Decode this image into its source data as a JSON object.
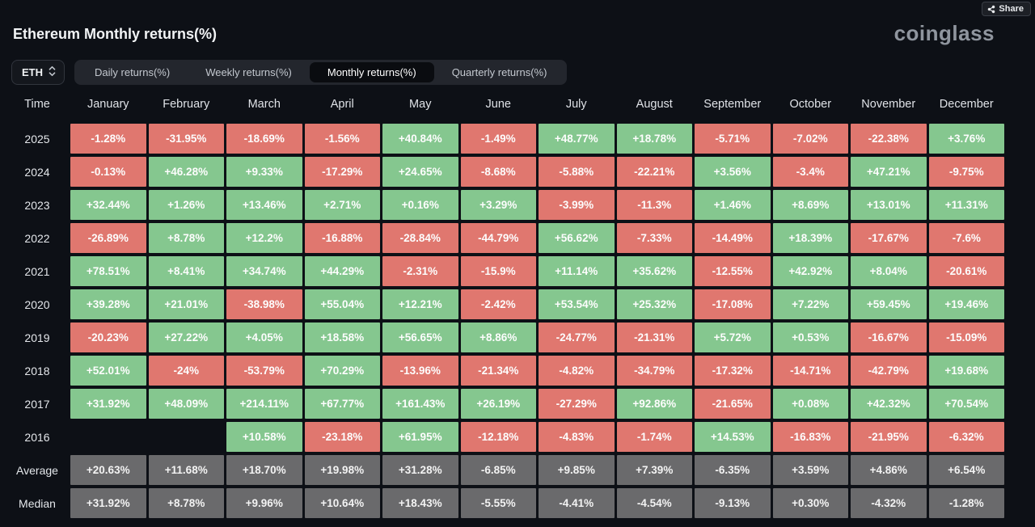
{
  "page": {
    "title": "Ethereum Monthly returns(%)",
    "brand": "coinglass",
    "share_label": "Share"
  },
  "controls": {
    "symbol_select": {
      "value": "ETH"
    },
    "tabs": [
      {
        "label": "Daily returns(%)",
        "active": false
      },
      {
        "label": "Weekly returns(%)",
        "active": false
      },
      {
        "label": "Monthly returns(%)",
        "active": true
      },
      {
        "label": "Quarterly returns(%)",
        "active": false
      }
    ]
  },
  "table": {
    "columns": [
      "Time",
      "January",
      "February",
      "March",
      "April",
      "May",
      "June",
      "July",
      "August",
      "September",
      "October",
      "November",
      "December"
    ],
    "rows": [
      {
        "label": "2025",
        "type": "year",
        "values": [
          "-1.28%",
          "-31.95%",
          "-18.69%",
          "-1.56%",
          "+40.84%",
          "-1.49%",
          "+48.77%",
          "+18.78%",
          "-5.71%",
          "-7.02%",
          "-22.38%",
          "+3.76%"
        ]
      },
      {
        "label": "2024",
        "type": "year",
        "values": [
          "-0.13%",
          "+46.28%",
          "+9.33%",
          "-17.29%",
          "+24.65%",
          "-8.68%",
          "-5.88%",
          "-22.21%",
          "+3.56%",
          "-3.4%",
          "+47.21%",
          "-9.75%"
        ]
      },
      {
        "label": "2023",
        "type": "year",
        "values": [
          "+32.44%",
          "+1.26%",
          "+13.46%",
          "+2.71%",
          "+0.16%",
          "+3.29%",
          "-3.99%",
          "-11.3%",
          "+1.46%",
          "+8.69%",
          "+13.01%",
          "+11.31%"
        ]
      },
      {
        "label": "2022",
        "type": "year",
        "values": [
          "-26.89%",
          "+8.78%",
          "+12.2%",
          "-16.88%",
          "-28.84%",
          "-44.79%",
          "+56.62%",
          "-7.33%",
          "-14.49%",
          "+18.39%",
          "-17.67%",
          "-7.6%"
        ]
      },
      {
        "label": "2021",
        "type": "year",
        "values": [
          "+78.51%",
          "+8.41%",
          "+34.74%",
          "+44.29%",
          "-2.31%",
          "-15.9%",
          "+11.14%",
          "+35.62%",
          "-12.55%",
          "+42.92%",
          "+8.04%",
          "-20.61%"
        ]
      },
      {
        "label": "2020",
        "type": "year",
        "values": [
          "+39.28%",
          "+21.01%",
          "-38.98%",
          "+55.04%",
          "+12.21%",
          "-2.42%",
          "+53.54%",
          "+25.32%",
          "-17.08%",
          "+7.22%",
          "+59.45%",
          "+19.46%"
        ]
      },
      {
        "label": "2019",
        "type": "year",
        "values": [
          "-20.23%",
          "+27.22%",
          "+4.05%",
          "+18.58%",
          "+56.65%",
          "+8.86%",
          "-24.77%",
          "-21.31%",
          "+5.72%",
          "+0.53%",
          "-16.67%",
          "-15.09%"
        ]
      },
      {
        "label": "2018",
        "type": "year",
        "values": [
          "+52.01%",
          "-24%",
          "-53.79%",
          "+70.29%",
          "-13.96%",
          "-21.34%",
          "-4.82%",
          "-34.79%",
          "-17.32%",
          "-14.71%",
          "-42.79%",
          "+19.68%"
        ]
      },
      {
        "label": "2017",
        "type": "year",
        "values": [
          "+31.92%",
          "+48.09%",
          "+214.11%",
          "+67.77%",
          "+161.43%",
          "+26.19%",
          "-27.29%",
          "+92.86%",
          "-21.65%",
          "+0.08%",
          "+42.32%",
          "+70.54%"
        ]
      },
      {
        "label": "2016",
        "type": "year",
        "values": [
          "",
          "",
          "+10.58%",
          "-23.18%",
          "+61.95%",
          "-12.18%",
          "-4.83%",
          "-1.74%",
          "+14.53%",
          "-16.83%",
          "-21.95%",
          "-6.32%"
        ]
      },
      {
        "label": "Average",
        "type": "summary",
        "values": [
          "+20.63%",
          "+11.68%",
          "+18.70%",
          "+19.98%",
          "+31.28%",
          "-6.85%",
          "+9.85%",
          "+7.39%",
          "-6.35%",
          "+3.59%",
          "+4.86%",
          "+6.54%"
        ]
      },
      {
        "label": "Median",
        "type": "summary",
        "values": [
          "+31.92%",
          "+8.78%",
          "+9.96%",
          "+10.64%",
          "+18.43%",
          "-5.55%",
          "-4.41%",
          "-4.54%",
          "-9.13%",
          "+0.30%",
          "-4.32%",
          "-1.28%"
        ]
      }
    ]
  },
  "colors": {
    "positive": "#85c78f",
    "negative": "#e0776f",
    "summary": "#6a6a6c",
    "background": "#0d1016"
  }
}
